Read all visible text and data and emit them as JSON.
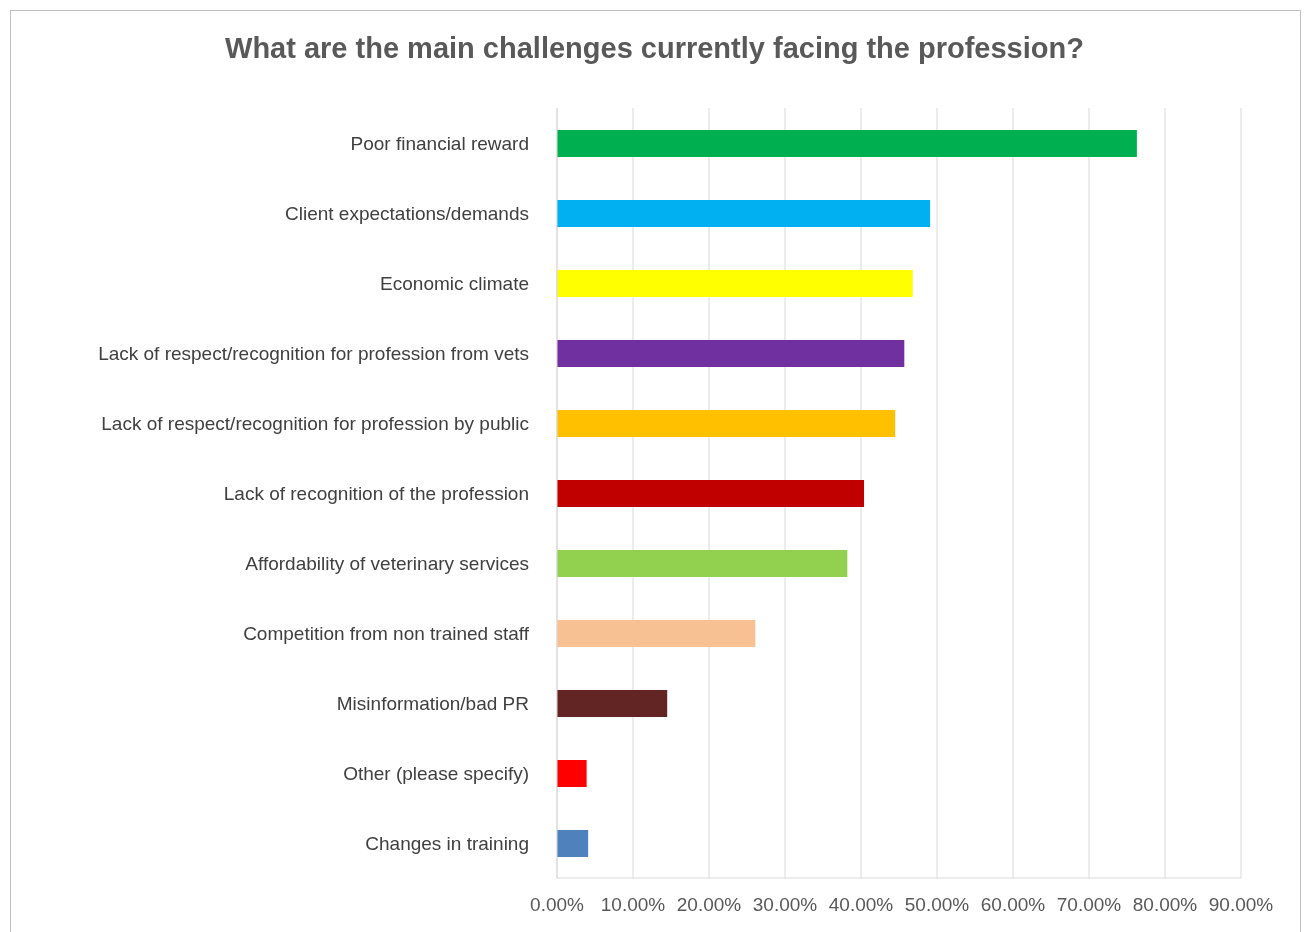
{
  "chart_data": {
    "type": "bar",
    "orientation": "horizontal",
    "title": "What are the main challenges currently facing the profession?",
    "categories": [
      "Poor financial reward",
      "Client expectations/demands",
      "Economic climate",
      "Lack of respect/recognition for profession from vets",
      "Lack of respect/recognition for profession by public",
      "Lack of recognition of the profession",
      "Affordability of veterinary services",
      "Competition from non trained staff",
      "Misinformation/bad PR",
      "Other (please specify)",
      "Changes in training"
    ],
    "values": [
      76.3,
      49.1,
      46.8,
      45.7,
      44.5,
      40.4,
      38.2,
      26.1,
      14.5,
      3.9,
      4.1
    ],
    "colors": [
      "#00b050",
      "#00b0f0",
      "#ffff00",
      "#7030a0",
      "#ffc000",
      "#c00000",
      "#92d050",
      "#f8c194",
      "#632523",
      "#ff0000",
      "#4f81bd"
    ],
    "xlim": [
      0,
      90
    ],
    "xticks": [
      {
        "value": 0,
        "label": "0.00%"
      },
      {
        "value": 10,
        "label": "10.00%"
      },
      {
        "value": 20,
        "label": "20.00%"
      },
      {
        "value": 30,
        "label": "30.00%"
      },
      {
        "value": 40,
        "label": "40.00%"
      },
      {
        "value": 50,
        "label": "50.00%"
      },
      {
        "value": 60,
        "label": "60.00%"
      },
      {
        "value": 70,
        "label": "70.00%"
      },
      {
        "value": 80,
        "label": "80.00%"
      },
      {
        "value": 90,
        "label": "90.00%"
      }
    ],
    "grid": "x",
    "legend": false
  }
}
